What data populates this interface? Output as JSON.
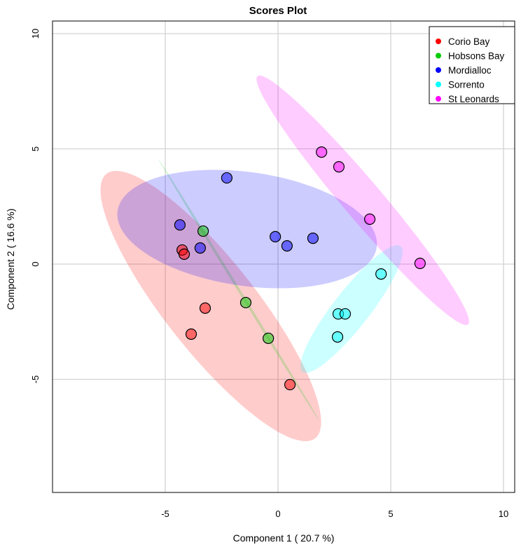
{
  "chart_data": {
    "type": "scatter",
    "title": "Scores Plot",
    "xlabel": "Component 1 ( 20.7 %)",
    "ylabel": "Component 2 ( 16.6 %)",
    "xlim": [
      -10,
      10.5
    ],
    "ylim": [
      -10,
      10.5
    ],
    "grid": true,
    "xticks": [
      -5,
      0,
      5,
      10
    ],
    "yticks": [
      -5,
      0,
      5,
      10
    ],
    "legend_position": "top-right",
    "series": [
      {
        "name": "Corio Bay",
        "color": "#FF0000",
        "points": [
          [
            -4.25,
            0.61
          ],
          [
            -4.16,
            0.43
          ],
          [
            -3.23,
            -1.91
          ],
          [
            -3.85,
            -3.04
          ],
          [
            0.53,
            -5.23
          ]
        ],
        "ellipse": {
          "cx": -2.98,
          "cy": -1.82,
          "a": 7.4,
          "b": 2.0,
          "angle": 51.7
        }
      },
      {
        "name": "Hobsons Bay",
        "color": "#00CC00",
        "points": [
          [
            -3.32,
            1.43
          ],
          [
            -1.43,
            -1.67
          ],
          [
            -0.43,
            -3.22
          ]
        ],
        "ellipse": {
          "cx": -1.74,
          "cy": -1.12,
          "a": 6.75,
          "b": 0.06,
          "angle": 58.4
        }
      },
      {
        "name": "Mordialloc",
        "color": "#0000FF",
        "points": [
          [
            -2.27,
            3.74
          ],
          [
            -4.35,
            1.7
          ],
          [
            -3.45,
            0.7
          ],
          [
            -0.12,
            1.19
          ],
          [
            0.4,
            0.79
          ],
          [
            1.55,
            1.12
          ]
        ],
        "ellipse": {
          "cx": -1.37,
          "cy": 1.52,
          "a": 5.75,
          "b": 2.5,
          "angle": 8
        }
      },
      {
        "name": "Sorrento",
        "color": "#00FFFF",
        "points": [
          [
            4.57,
            -0.43
          ],
          [
            2.67,
            -2.16
          ],
          [
            2.98,
            -2.16
          ],
          [
            2.64,
            -3.16
          ]
        ],
        "ellipse": {
          "cx": 3.26,
          "cy": -1.95,
          "a": 3.5,
          "b": 0.8,
          "angle": -52
        }
      },
      {
        "name": "St Leonards",
        "color": "#FF00FF",
        "points": [
          [
            1.93,
            4.86
          ],
          [
            2.7,
            4.22
          ],
          [
            4.07,
            1.95
          ],
          [
            6.3,
            0.03
          ]
        ],
        "ellipse": {
          "cx": 3.76,
          "cy": 2.77,
          "a": 7.15,
          "b": 0.85,
          "angle": 49.7
        }
      }
    ]
  }
}
